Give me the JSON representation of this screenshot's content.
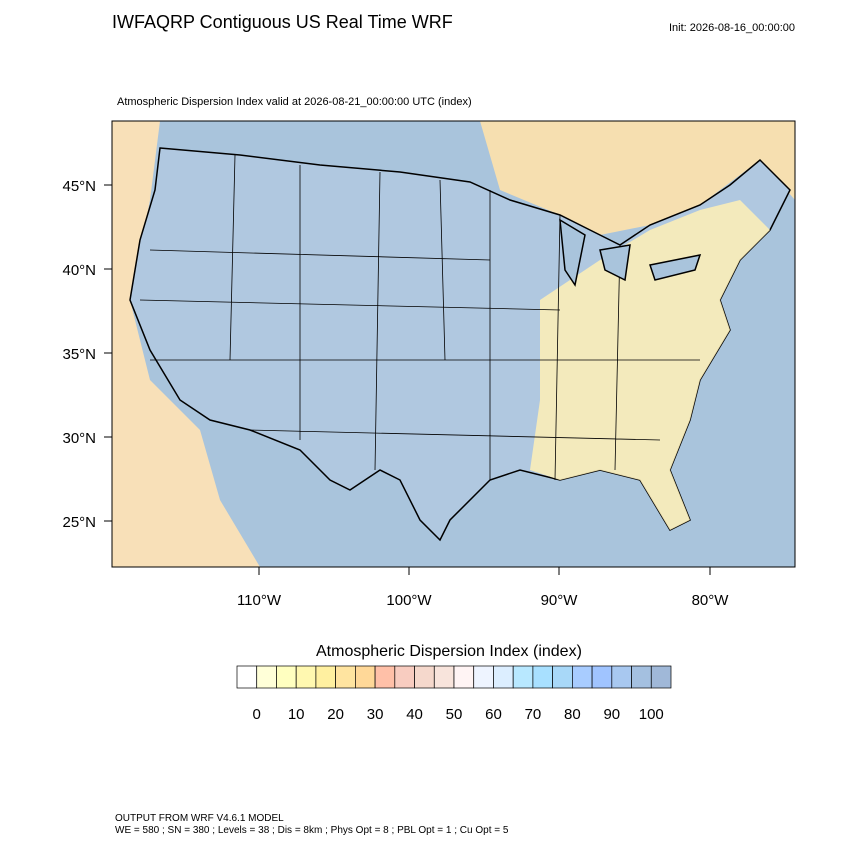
{
  "header": {
    "title": "IWFAQRP Contiguous US Real Time WRF",
    "init": "Init: 2026-08-16_00:00:00"
  },
  "map": {
    "subtitle": "Atmospheric Dispersion Index valid at 2026-08-21_00:00:00 UTC   (index)",
    "lat_labels": [
      "45°N",
      "40°N",
      "35°N",
      "30°N",
      "25°N"
    ],
    "lon_labels": [
      "110°W",
      "100°W",
      "90°W",
      "80°W"
    ]
  },
  "colorbar": {
    "title": "Atmospheric Dispersion Index  (index)",
    "lim": [
      -5,
      105
    ],
    "ticks": [
      0,
      10,
      20,
      30,
      40,
      50,
      60,
      70,
      80,
      90,
      100
    ],
    "colors": [
      "#ffffff",
      "#ffffd8",
      "#ffffc0",
      "#fff8b0",
      "#fff0a0",
      "#ffe4a0",
      "#ffd898",
      "#ffc0a8",
      "#f8ccc0",
      "#f5d8cc",
      "#f8e4dc",
      "#fff4f4",
      "#eef4ff",
      "#dceeff",
      "#b8e8ff",
      "#a8e0ff",
      "#a8d8f8",
      "#a8ccff",
      "#a0c4ff",
      "#a8c8f0",
      "#a4c0e0",
      "#a0b8d8"
    ]
  },
  "footer": {
    "line1": "OUTPUT FROM WRF V4.6.1 MODEL",
    "line2": "WE = 580 ; SN = 380 ; Levels = 38 ; Dis = 8km ; Phys Opt = 8 ; PBL Opt = 1 ; Cu Opt = 5"
  }
}
